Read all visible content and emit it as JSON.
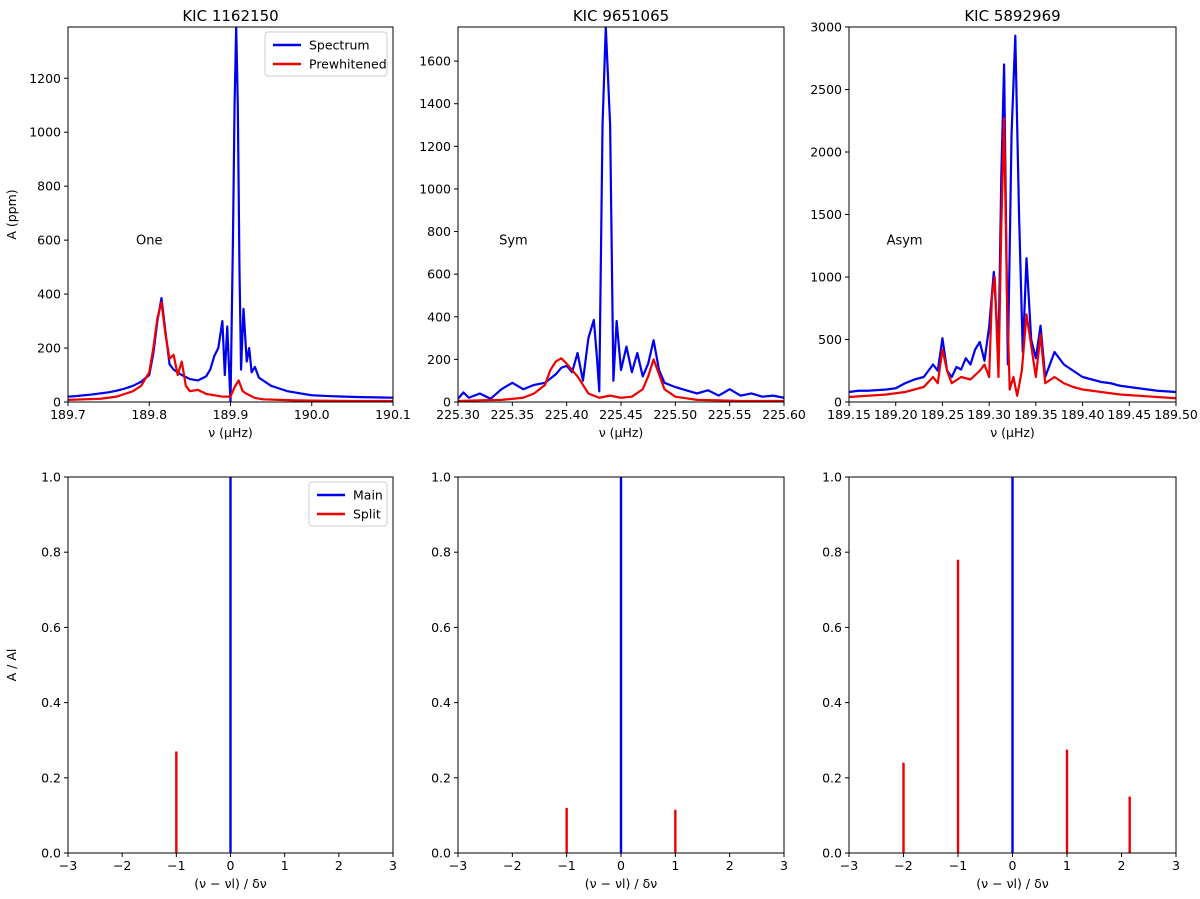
{
  "figure": {
    "panels": [
      {
        "title": "KIC 1162150",
        "xlabel": "ν (μHz)",
        "ylabel": "A (ppm)",
        "annotation": "One",
        "xticks": [
          "189.7",
          "189.8",
          "189.9",
          "190.0",
          "190.1"
        ],
        "yticks": [
          "0",
          "200",
          "400",
          "600",
          "800",
          "1000",
          "1200"
        ],
        "legend": [
          "Spectrum",
          "Prewhitened"
        ]
      },
      {
        "title": "KIC 9651065",
        "xlabel": "ν (μHz)",
        "ylabel": "",
        "annotation": "Sym",
        "xticks": [
          "225.30",
          "225.35",
          "225.40",
          "225.45",
          "225.50",
          "225.55",
          "225.60"
        ],
        "yticks": [
          "0",
          "200",
          "400",
          "600",
          "800",
          "1000",
          "1200",
          "1400",
          "1600"
        ],
        "legend": []
      },
      {
        "title": "KIC 5892969",
        "xlabel": "ν (μHz)",
        "ylabel": "",
        "annotation": "Asym",
        "xticks": [
          "189.15",
          "189.20",
          "189.25",
          "189.30",
          "189.35",
          "189.40",
          "189.45",
          "189.50"
        ],
        "yticks": [
          "0",
          "500",
          "1000",
          "1500",
          "2000",
          "2500",
          "3000"
        ],
        "legend": []
      },
      {
        "title": "",
        "xlabel": "(ν − νl) / δν",
        "ylabel": "A / Al",
        "annotation": "",
        "xticks": [
          "−3",
          "−2",
          "−1",
          "0",
          "1",
          "2",
          "3"
        ],
        "yticks": [
          "0.0",
          "0.2",
          "0.4",
          "0.6",
          "0.8",
          "1.0"
        ],
        "legend": [
          "Main",
          "Split"
        ]
      },
      {
        "title": "",
        "xlabel": "(ν − νl) / δν",
        "ylabel": "",
        "annotation": "",
        "xticks": [
          "−3",
          "−2",
          "−1",
          "0",
          "1",
          "2",
          "3"
        ],
        "yticks": [
          "0.0",
          "0.2",
          "0.4",
          "0.6",
          "0.8",
          "1.0"
        ],
        "legend": []
      },
      {
        "title": "",
        "xlabel": "(ν − νl) / δν",
        "ylabel": "",
        "annotation": "",
        "xticks": [
          "−3",
          "−2",
          "−1",
          "0",
          "1",
          "2",
          "3"
        ],
        "yticks": [
          "0.0",
          "0.2",
          "0.4",
          "0.6",
          "0.8",
          "1.0"
        ],
        "legend": []
      }
    ]
  },
  "colors": {
    "main": "#0000ee",
    "split": "#ee0000"
  },
  "chart_data": [
    {
      "type": "line",
      "title": "KIC 1162150",
      "annotation": "One",
      "xlabel": "ν (μHz)",
      "ylabel": "A (ppm)",
      "xlim": [
        189.7,
        190.1
      ],
      "ylim": [
        0,
        1390
      ],
      "xticks": [
        189.7,
        189.8,
        189.9,
        190.0,
        190.1
      ],
      "yticks": [
        0,
        200,
        400,
        600,
        800,
        1000,
        1200
      ],
      "legend_position": "top-right",
      "series": [
        {
          "name": "Spectrum",
          "color": "#0000ee",
          "x": [
            189.7,
            189.71,
            189.72,
            189.73,
            189.74,
            189.75,
            189.76,
            189.77,
            189.78,
            189.79,
            189.8,
            189.805,
            189.81,
            189.815,
            189.82,
            189.825,
            189.83,
            189.84,
            189.85,
            189.86,
            189.87,
            189.875,
            189.88,
            189.885,
            189.89,
            189.893,
            189.896,
            189.9,
            189.903,
            189.905,
            189.907,
            189.909,
            189.911,
            189.913,
            189.916,
            189.92,
            189.923,
            189.926,
            189.93,
            189.935,
            189.94,
            189.95,
            189.96,
            189.97,
            189.98,
            189.99,
            190.0,
            190.02,
            190.04,
            190.06,
            190.08,
            190.1
          ],
          "y": [
            20,
            22,
            25,
            28,
            32,
            36,
            42,
            50,
            60,
            75,
            100,
            180,
            300,
            385,
            260,
            140,
            120,
            100,
            85,
            80,
            95,
            120,
            170,
            200,
            300,
            100,
            280,
            0,
            600,
            1100,
            1390,
            1100,
            500,
            120,
            345,
            150,
            200,
            110,
            130,
            90,
            80,
            60,
            50,
            40,
            35,
            30,
            25,
            22,
            20,
            18,
            17,
            16
          ]
        },
        {
          "name": "Prewhitened",
          "color": "#ee0000",
          "x": [
            189.7,
            189.72,
            189.74,
            189.76,
            189.78,
            189.79,
            189.8,
            189.805,
            189.81,
            189.815,
            189.82,
            189.825,
            189.83,
            189.835,
            189.84,
            189.845,
            189.85,
            189.86,
            189.87,
            189.88,
            189.89,
            189.9,
            189.905,
            189.91,
            189.915,
            189.92,
            189.93,
            189.94,
            189.96,
            189.98,
            190.0,
            190.05,
            190.1
          ],
          "y": [
            8,
            10,
            12,
            20,
            40,
            60,
            110,
            200,
            310,
            370,
            250,
            160,
            175,
            100,
            150,
            60,
            40,
            45,
            30,
            25,
            20,
            20,
            55,
            80,
            40,
            30,
            15,
            10,
            8,
            6,
            5,
            4,
            4
          ]
        }
      ]
    },
    {
      "type": "line",
      "title": "KIC 9651065",
      "annotation": "Sym",
      "xlabel": "ν (μHz)",
      "ylabel": "",
      "xlim": [
        225.3,
        225.6
      ],
      "ylim": [
        0,
        1760
      ],
      "xticks": [
        225.3,
        225.35,
        225.4,
        225.45,
        225.5,
        225.55,
        225.6
      ],
      "yticks": [
        0,
        200,
        400,
        600,
        800,
        1000,
        1200,
        1400,
        1600
      ],
      "series": [
        {
          "name": "Spectrum",
          "color": "#0000ee",
          "x": [
            225.3,
            225.305,
            225.31,
            225.32,
            225.33,
            225.34,
            225.35,
            225.36,
            225.37,
            225.38,
            225.39,
            225.395,
            225.4,
            225.405,
            225.41,
            225.415,
            225.42,
            225.425,
            225.428,
            225.43,
            225.433,
            225.436,
            225.44,
            225.443,
            225.446,
            225.45,
            225.455,
            225.46,
            225.465,
            225.47,
            225.475,
            225.48,
            225.485,
            225.49,
            225.5,
            225.51,
            225.52,
            225.53,
            225.54,
            225.55,
            225.56,
            225.57,
            225.58,
            225.59,
            225.6
          ],
          "y": [
            15,
            45,
            20,
            40,
            15,
            60,
            90,
            60,
            80,
            90,
            130,
            160,
            170,
            140,
            230,
            100,
            300,
            385,
            200,
            50,
            1300,
            1760,
            1300,
            100,
            380,
            150,
            260,
            140,
            230,
            120,
            180,
            290,
            150,
            90,
            70,
            55,
            40,
            55,
            30,
            60,
            30,
            40,
            25,
            30,
            20
          ]
        },
        {
          "name": "Prewhitened",
          "color": "#ee0000",
          "x": [
            225.3,
            225.32,
            225.34,
            225.36,
            225.37,
            225.38,
            225.385,
            225.39,
            225.395,
            225.4,
            225.405,
            225.41,
            225.415,
            225.42,
            225.43,
            225.44,
            225.45,
            225.46,
            225.47,
            225.475,
            225.48,
            225.485,
            225.49,
            225.5,
            225.52,
            225.54,
            225.56,
            225.6
          ],
          "y": [
            5,
            8,
            10,
            20,
            40,
            80,
            150,
            190,
            205,
            180,
            150,
            120,
            80,
            40,
            20,
            30,
            20,
            25,
            60,
            120,
            200,
            130,
            60,
            25,
            10,
            8,
            5,
            5
          ]
        }
      ]
    },
    {
      "type": "line",
      "title": "KIC 5892969",
      "annotation": "Asym",
      "xlabel": "ν (μHz)",
      "ylabel": "",
      "xlim": [
        189.15,
        189.5
      ],
      "ylim": [
        0,
        3000
      ],
      "xticks": [
        189.15,
        189.2,
        189.25,
        189.3,
        189.35,
        189.4,
        189.45,
        189.5
      ],
      "yticks": [
        0,
        500,
        1000,
        1500,
        2000,
        2500,
        3000
      ],
      "series": [
        {
          "name": "Spectrum",
          "color": "#0000ee",
          "x": [
            189.15,
            189.16,
            189.17,
            189.18,
            189.19,
            189.2,
            189.21,
            189.22,
            189.23,
            189.24,
            189.245,
            189.25,
            189.255,
            189.26,
            189.265,
            189.27,
            189.275,
            189.28,
            189.285,
            189.29,
            189.295,
            189.3,
            189.305,
            189.31,
            189.313,
            189.316,
            189.32,
            189.324,
            189.328,
            189.332,
            189.336,
            189.34,
            189.345,
            189.35,
            189.355,
            189.36,
            189.37,
            189.38,
            189.39,
            189.4,
            189.41,
            189.42,
            189.43,
            189.44,
            189.45,
            189.46,
            189.47,
            189.48,
            189.49,
            189.5
          ],
          "y": [
            80,
            90,
            90,
            95,
            100,
            110,
            150,
            180,
            200,
            300,
            250,
            510,
            250,
            200,
            280,
            260,
            350,
            300,
            420,
            480,
            330,
            600,
            1040,
            400,
            1800,
            2700,
            300,
            2150,
            2930,
            1500,
            400,
            1150,
            500,
            350,
            610,
            200,
            400,
            300,
            250,
            200,
            180,
            160,
            150,
            130,
            120,
            110,
            100,
            90,
            85,
            80
          ]
        },
        {
          "name": "Prewhitened",
          "color": "#ee0000",
          "x": [
            189.15,
            189.17,
            189.19,
            189.21,
            189.23,
            189.24,
            189.245,
            189.25,
            189.255,
            189.26,
            189.27,
            189.28,
            189.29,
            189.295,
            189.3,
            189.303,
            189.306,
            189.31,
            189.313,
            189.316,
            189.319,
            189.322,
            189.326,
            189.33,
            189.335,
            189.34,
            189.345,
            189.35,
            189.355,
            189.36,
            189.37,
            189.38,
            189.39,
            189.4,
            189.42,
            189.44,
            189.46,
            189.48,
            189.5
          ],
          "y": [
            40,
            50,
            60,
            80,
            120,
            200,
            150,
            420,
            250,
            150,
            200,
            180,
            250,
            300,
            200,
            850,
            1000,
            200,
            1400,
            2270,
            900,
            100,
            200,
            50,
            250,
            700,
            450,
            200,
            540,
            150,
            200,
            150,
            120,
            100,
            80,
            60,
            50,
            40,
            30
          ]
        }
      ]
    },
    {
      "type": "bar",
      "subtype": "stem",
      "title": "",
      "xlabel": "(ν − νl) / δν",
      "ylabel": "A / Al",
      "xlim": [
        -3,
        3
      ],
      "ylim": [
        0,
        1.0
      ],
      "xticks": [
        -3,
        -2,
        -1,
        0,
        1,
        2,
        3
      ],
      "yticks": [
        0.0,
        0.2,
        0.4,
        0.6,
        0.8,
        1.0
      ],
      "legend_position": "top-right",
      "series": [
        {
          "name": "Main",
          "color": "#0000ee",
          "x": [
            0
          ],
          "values": [
            1.0
          ]
        },
        {
          "name": "Split",
          "color": "#ee0000",
          "x": [
            -1
          ],
          "values": [
            0.27
          ]
        }
      ]
    },
    {
      "type": "bar",
      "subtype": "stem",
      "title": "",
      "xlabel": "(ν − νl) / δν",
      "ylabel": "",
      "xlim": [
        -3,
        3
      ],
      "ylim": [
        0,
        1.0
      ],
      "xticks": [
        -3,
        -2,
        -1,
        0,
        1,
        2,
        3
      ],
      "yticks": [
        0.0,
        0.2,
        0.4,
        0.6,
        0.8,
        1.0
      ],
      "series": [
        {
          "name": "Main",
          "color": "#0000ee",
          "x": [
            0
          ],
          "values": [
            1.0
          ]
        },
        {
          "name": "Split",
          "color": "#ee0000",
          "x": [
            -1,
            1
          ],
          "values": [
            0.12,
            0.115
          ]
        }
      ]
    },
    {
      "type": "bar",
      "subtype": "stem",
      "title": "",
      "xlabel": "(ν − νl) / δν",
      "ylabel": "",
      "xlim": [
        -3,
        3
      ],
      "ylim": [
        0,
        1.0
      ],
      "xticks": [
        -3,
        -2,
        -1,
        0,
        1,
        2,
        3
      ],
      "yticks": [
        0.0,
        0.2,
        0.4,
        0.6,
        0.8,
        1.0
      ],
      "series": [
        {
          "name": "Main",
          "color": "#0000ee",
          "x": [
            0
          ],
          "values": [
            1.0
          ]
        },
        {
          "name": "Split",
          "color": "#ee0000",
          "x": [
            -2,
            -1,
            1,
            2.15
          ],
          "values": [
            0.24,
            0.78,
            0.275,
            0.15
          ]
        }
      ]
    }
  ]
}
